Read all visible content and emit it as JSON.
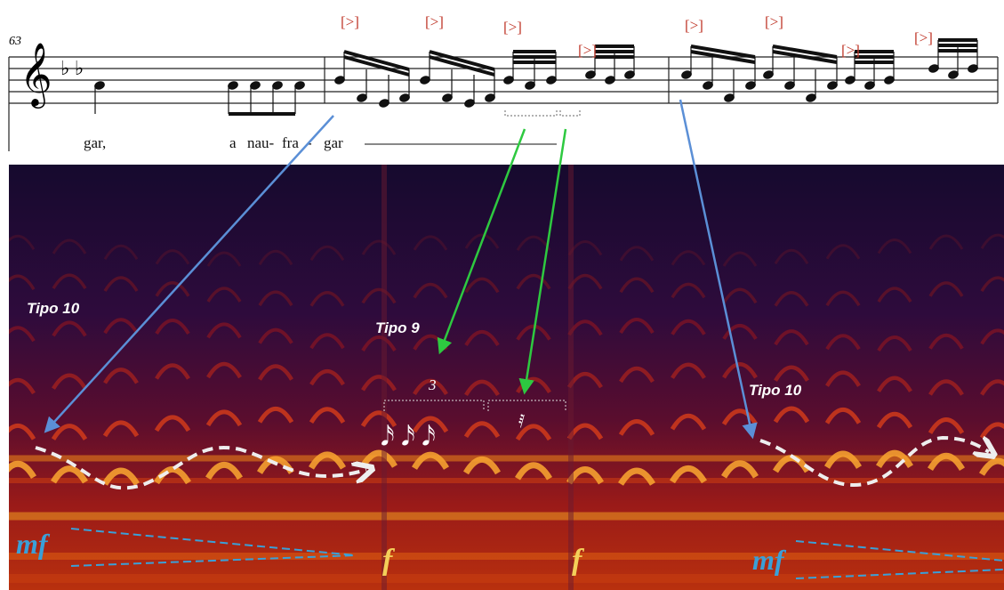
{
  "measure_number": "63",
  "accents": [
    "[>]",
    "[>]",
    "[>]",
    "[>]",
    "[>]",
    "[>]",
    "[>]",
    "[>]"
  ],
  "lyrics": [
    "gar,",
    "a",
    "nau-",
    "fra",
    "-",
    "gar"
  ],
  "annotations": [
    "Tipo 10",
    "Tipo 9",
    "Tipo 10"
  ],
  "tuplet": "3",
  "dynamics": [
    "mf",
    "f",
    "f",
    "mf"
  ]
}
